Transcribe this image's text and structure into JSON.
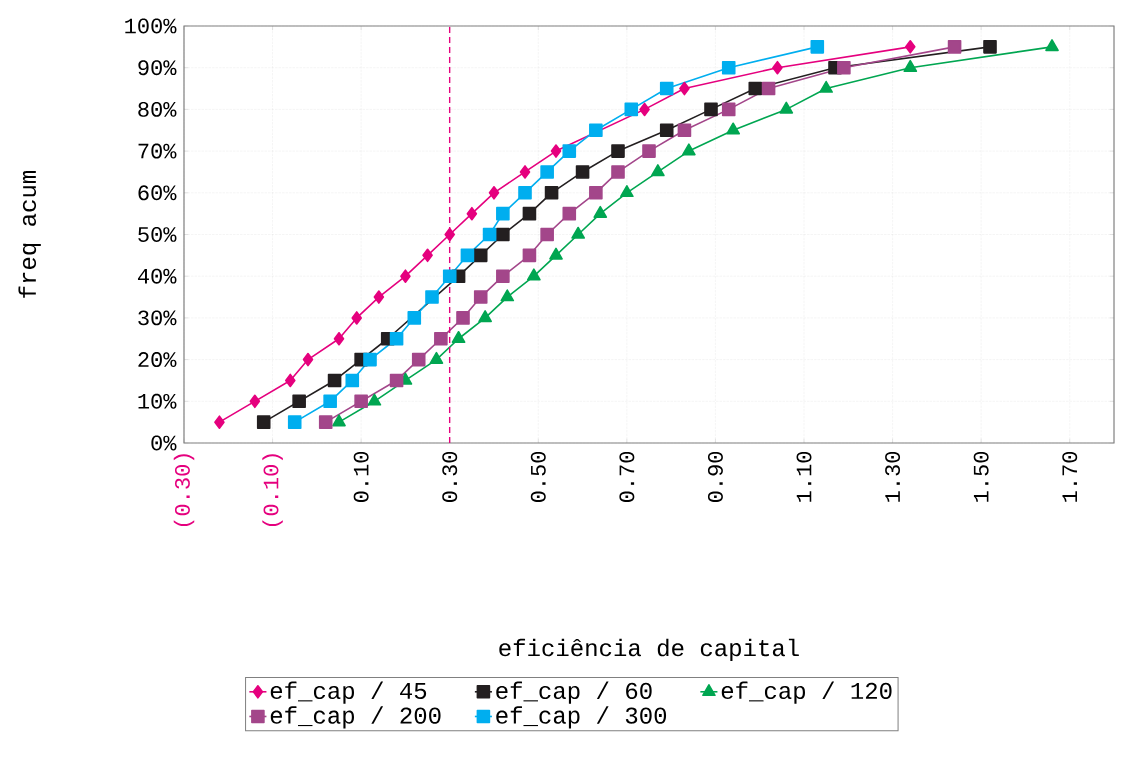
{
  "chart_data": {
    "type": "line",
    "xlabel": "eficiência de capital",
    "ylabel": "freq acum",
    "xlim": [
      -0.3,
      1.8
    ],
    "xticks": [
      {
        "value": -0.3,
        "label": "(0.30)"
      },
      {
        "value": -0.1,
        "label": "(0.10)"
      },
      {
        "value": 0.1,
        "label": "0.10"
      },
      {
        "value": 0.3,
        "label": "0.30"
      },
      {
        "value": 0.5,
        "label": "0.50"
      },
      {
        "value": 0.7,
        "label": "0.70"
      },
      {
        "value": 0.9,
        "label": "0.90"
      },
      {
        "value": 1.1,
        "label": "1.10"
      },
      {
        "value": 1.3,
        "label": "1.30"
      },
      {
        "value": 1.5,
        "label": "1.50"
      },
      {
        "value": 1.7,
        "label": "1.70"
      }
    ],
    "ylim": [
      0,
      100
    ],
    "yticks": [
      {
        "value": 0,
        "label": "0%"
      },
      {
        "value": 10,
        "label": "10%"
      },
      {
        "value": 20,
        "label": "20%"
      },
      {
        "value": 30,
        "label": "30%"
      },
      {
        "value": 40,
        "label": "40%"
      },
      {
        "value": 50,
        "label": "50%"
      },
      {
        "value": 60,
        "label": "60%"
      },
      {
        "value": 70,
        "label": "70%"
      },
      {
        "value": 80,
        "label": "80%"
      },
      {
        "value": 90,
        "label": "90%"
      },
      {
        "value": 100,
        "label": "100%"
      }
    ],
    "grid": true,
    "legend": "bottom",
    "line_style": "solid",
    "ref_lines": [
      {
        "axis": "x",
        "value": 0.3,
        "color": "#e5007e",
        "line_style": "dashed"
      }
    ],
    "series": [
      {
        "name": "ef_cap / 45",
        "color": "#e5007e",
        "marker": "diamond",
        "x": [
          -0.22,
          -0.14,
          -0.06,
          -0.02,
          0.05,
          0.09,
          0.14,
          0.2,
          0.25,
          0.3,
          0.35,
          0.4,
          0.47,
          0.54,
          0.63,
          0.74,
          0.83,
          1.04,
          1.34
        ],
        "values": [
          5,
          10,
          15,
          20,
          25,
          30,
          35,
          40,
          45,
          50,
          55,
          60,
          65,
          70,
          null,
          80,
          85,
          90,
          95
        ]
      },
      {
        "name": "ef_cap / 60",
        "color": "#231f20",
        "marker": "square",
        "x": [
          -0.12,
          -0.04,
          0.04,
          0.1,
          0.16,
          0.21,
          0.27,
          0.32,
          0.37,
          0.42,
          0.48,
          0.53,
          0.6,
          0.68,
          0.79,
          0.89,
          0.99,
          1.17,
          1.52
        ],
        "values": [
          5,
          10,
          15,
          20,
          25,
          null,
          null,
          40,
          45,
          50,
          55,
          60,
          65,
          70,
          75,
          80,
          85,
          90,
          95
        ]
      },
      {
        "name": "ef_cap / 120",
        "color": "#00a651",
        "marker": "triangle",
        "x": [
          0.05,
          0.13,
          0.2,
          0.27,
          0.32,
          0.38,
          0.43,
          0.49,
          0.54,
          0.59,
          0.64,
          0.7,
          0.77,
          0.84,
          0.94,
          1.06,
          1.15,
          1.34,
          1.66
        ],
        "values": [
          5,
          10,
          15,
          20,
          25,
          30,
          35,
          40,
          45,
          50,
          55,
          60,
          65,
          70,
          75,
          80,
          85,
          90,
          95
        ]
      },
      {
        "name": "ef_cap / 200",
        "color": "#a3468a",
        "marker": "square",
        "x": [
          0.02,
          0.1,
          0.18,
          0.23,
          0.28,
          0.33,
          0.37,
          0.42,
          0.48,
          0.52,
          0.57,
          0.63,
          0.68,
          0.75,
          0.83,
          0.93,
          1.02,
          1.19,
          1.44
        ],
        "values": [
          5,
          10,
          15,
          20,
          25,
          30,
          35,
          40,
          45,
          50,
          55,
          60,
          65,
          70,
          75,
          80,
          85,
          90,
          95
        ]
      },
      {
        "name": "ef_cap / 300",
        "color": "#00aeef",
        "marker": "square",
        "x": [
          -0.05,
          0.03,
          0.08,
          0.12,
          0.18,
          0.22,
          0.26,
          0.3,
          0.34,
          0.39,
          0.42,
          0.47,
          0.52,
          0.57,
          0.63,
          0.71,
          0.79,
          0.93,
          1.13
        ],
        "values": [
          5,
          10,
          15,
          20,
          25,
          30,
          35,
          40,
          45,
          50,
          55,
          60,
          65,
          70,
          75,
          80,
          85,
          90,
          95
        ]
      }
    ]
  }
}
